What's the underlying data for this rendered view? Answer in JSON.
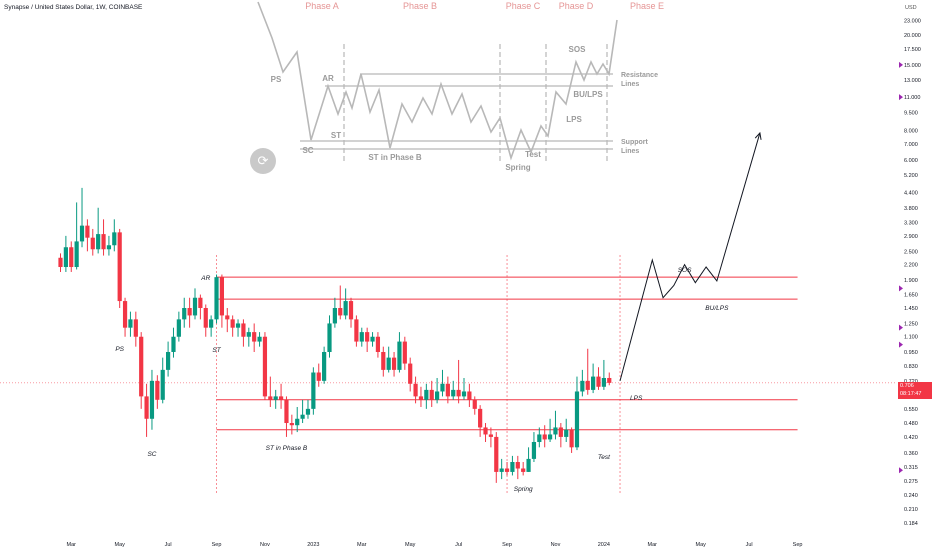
{
  "header": {
    "symbol_title": "Synapse / United States Dollar, 1W, COINBASE",
    "currency": "USD"
  },
  "icons": {
    "screen_capture": "camera-rotate-icon"
  },
  "price_label": {
    "price": "0.706",
    "countdown": "08:17:47",
    "color": "#f23645"
  },
  "chart_data": {
    "type": "candlestick",
    "scale": "log",
    "ylim": [
      0.175,
      24
    ],
    "colors": {
      "up": "#089981",
      "down": "#f23645",
      "level_lines": "#f23645"
    },
    "y_ticks": [
      23.0,
      20.0,
      17.5,
      15.0,
      13.0,
      11.0,
      9.5,
      8.0,
      7.0,
      6.0,
      5.2,
      4.4,
      3.8,
      3.3,
      2.9,
      2.5,
      2.2,
      1.9,
      1.65,
      1.45,
      1.25,
      1.1,
      0.95,
      0.83,
      0.72,
      0.63,
      0.55,
      0.48,
      0.42,
      0.36,
      0.315,
      0.275,
      0.24,
      0.21,
      0.184
    ],
    "y_tick_labels": [
      "23.000",
      "20.000",
      "17.500",
      "15.000",
      "13.000",
      "11.000",
      "9.500",
      "8.000",
      "7.000",
      "6.000",
      "5.200",
      "4.400",
      "3.800",
      "3.300",
      "2.900",
      "2.500",
      "2.200",
      "1.900",
      "1.650",
      "1.450",
      "1.250",
      "1.100",
      "0.950",
      "0.830",
      "0.720",
      "0.630",
      "0.550",
      "0.480",
      "0.420",
      "0.360",
      "0.315",
      "0.275",
      "0.240",
      "0.210",
      "0.184"
    ],
    "x_ticks": [
      "Mar",
      "May",
      "Jul",
      "Sep",
      "Nov",
      "2023",
      "Mar",
      "May",
      "Jul",
      "Sep",
      "Nov",
      "2024",
      "Mar",
      "May",
      "Jul",
      "Sep"
    ],
    "x_tick_index": [
      2,
      11,
      20,
      29,
      38,
      47,
      56,
      65,
      74,
      83,
      92,
      101,
      110,
      119,
      128,
      137
    ],
    "candles": [
      [
        2.35,
        2.15,
        2.45,
        2.05
      ],
      [
        2.15,
        2.6,
        2.9,
        2.05
      ],
      [
        2.6,
        2.15,
        2.75,
        2.05
      ],
      [
        2.15,
        2.75,
        4.0,
        2.1
      ],
      [
        2.75,
        3.2,
        4.6,
        2.6
      ],
      [
        3.2,
        2.85,
        3.4,
        2.5
      ],
      [
        2.85,
        2.55,
        3.1,
        2.4
      ],
      [
        2.55,
        2.95,
        3.8,
        2.45
      ],
      [
        2.95,
        2.55,
        3.4,
        2.4
      ],
      [
        2.55,
        2.65,
        2.9,
        2.4
      ],
      [
        2.65,
        3.0,
        3.4,
        2.5
      ],
      [
        3.0,
        1.55,
        3.1,
        1.45
      ],
      [
        1.55,
        1.2,
        1.6,
        1.1
      ],
      [
        1.2,
        1.3,
        1.4,
        1.1
      ],
      [
        1.3,
        1.1,
        1.4,
        1.0
      ],
      [
        1.1,
        0.62,
        1.15,
        0.55
      ],
      [
        0.62,
        0.5,
        0.7,
        0.42
      ],
      [
        0.5,
        0.72,
        0.8,
        0.45
      ],
      [
        0.72,
        0.6,
        0.76,
        0.55
      ],
      [
        0.6,
        0.8,
        0.9,
        0.58
      ],
      [
        0.8,
        0.95,
        1.05,
        0.75
      ],
      [
        0.95,
        1.1,
        1.2,
        0.9
      ],
      [
        1.1,
        1.3,
        1.4,
        1.05
      ],
      [
        1.3,
        1.45,
        1.6,
        1.2
      ],
      [
        1.45,
        1.35,
        1.6,
        1.2
      ],
      [
        1.35,
        1.6,
        1.75,
        1.3
      ],
      [
        1.6,
        1.45,
        1.65,
        1.3
      ],
      [
        1.45,
        1.2,
        1.5,
        1.1
      ],
      [
        1.2,
        1.3,
        1.35,
        1.1
      ],
      [
        1.3,
        1.95,
        2.0,
        1.25
      ],
      [
        1.95,
        1.35,
        2.0,
        1.2
      ],
      [
        1.35,
        1.3,
        1.45,
        1.15
      ],
      [
        1.3,
        1.2,
        1.35,
        1.1
      ],
      [
        1.2,
        1.25,
        1.3,
        1.1
      ],
      [
        1.25,
        1.1,
        1.3,
        1.0
      ],
      [
        1.1,
        1.15,
        1.2,
        1.0
      ],
      [
        1.15,
        1.05,
        1.25,
        0.95
      ],
      [
        1.05,
        1.1,
        1.15,
        1.0
      ],
      [
        1.1,
        0.62,
        1.15,
        0.6
      ],
      [
        0.62,
        0.6,
        0.75,
        0.56
      ],
      [
        0.6,
        0.62,
        0.66,
        0.55
      ],
      [
        0.62,
        0.6,
        0.7,
        0.55
      ],
      [
        0.6,
        0.48,
        0.62,
        0.42
      ],
      [
        0.48,
        0.47,
        0.52,
        0.43
      ],
      [
        0.47,
        0.5,
        0.56,
        0.44
      ],
      [
        0.5,
        0.52,
        0.6,
        0.48
      ],
      [
        0.52,
        0.55,
        0.6,
        0.5
      ],
      [
        0.55,
        0.78,
        0.82,
        0.52
      ],
      [
        0.78,
        0.72,
        0.85,
        0.68
      ],
      [
        0.72,
        0.95,
        1.0,
        0.7
      ],
      [
        0.95,
        1.25,
        1.35,
        0.9
      ],
      [
        1.25,
        1.45,
        1.6,
        1.2
      ],
      [
        1.45,
        1.35,
        1.8,
        1.3
      ],
      [
        1.35,
        1.55,
        1.75,
        1.3
      ],
      [
        1.55,
        1.3,
        1.6,
        1.2
      ],
      [
        1.3,
        1.05,
        1.35,
        1.0
      ],
      [
        1.05,
        1.15,
        1.2,
        1.0
      ],
      [
        1.15,
        1.05,
        1.2,
        0.95
      ],
      [
        1.05,
        1.1,
        1.15,
        1.0
      ],
      [
        1.1,
        0.95,
        1.15,
        0.9
      ],
      [
        0.95,
        0.8,
        1.0,
        0.75
      ],
      [
        0.8,
        0.9,
        1.0,
        0.78
      ],
      [
        0.9,
        0.8,
        0.95,
        0.75
      ],
      [
        0.8,
        1.05,
        1.15,
        0.78
      ],
      [
        1.05,
        0.85,
        1.1,
        0.8
      ],
      [
        0.85,
        0.7,
        0.9,
        0.65
      ],
      [
        0.7,
        0.62,
        0.75,
        0.58
      ],
      [
        0.62,
        0.6,
        0.68,
        0.56
      ],
      [
        0.6,
        0.66,
        0.7,
        0.55
      ],
      [
        0.66,
        0.6,
        0.72,
        0.56
      ],
      [
        0.6,
        0.65,
        0.74,
        0.58
      ],
      [
        0.65,
        0.7,
        0.8,
        0.62
      ],
      [
        0.7,
        0.62,
        0.75,
        0.58
      ],
      [
        0.62,
        0.66,
        0.72,
        0.6
      ],
      [
        0.66,
        0.62,
        0.88,
        0.58
      ],
      [
        0.62,
        0.65,
        0.74,
        0.6
      ],
      [
        0.65,
        0.6,
        0.7,
        0.56
      ],
      [
        0.6,
        0.55,
        0.62,
        0.52
      ],
      [
        0.55,
        0.46,
        0.57,
        0.42
      ],
      [
        0.46,
        0.43,
        0.48,
        0.4
      ],
      [
        0.43,
        0.42,
        0.46,
        0.38
      ],
      [
        0.42,
        0.3,
        0.44,
        0.27
      ],
      [
        0.3,
        0.31,
        0.34,
        0.28
      ],
      [
        0.31,
        0.3,
        0.33,
        0.29
      ],
      [
        0.3,
        0.33,
        0.35,
        0.29
      ],
      [
        0.33,
        0.31,
        0.35,
        0.28
      ],
      [
        0.31,
        0.3,
        0.33,
        0.29
      ],
      [
        0.3,
        0.34,
        0.38,
        0.3
      ],
      [
        0.34,
        0.4,
        0.44,
        0.33
      ],
      [
        0.4,
        0.43,
        0.46,
        0.38
      ],
      [
        0.43,
        0.41,
        0.47,
        0.38
      ],
      [
        0.41,
        0.43,
        0.5,
        0.4
      ],
      [
        0.43,
        0.46,
        0.54,
        0.41
      ],
      [
        0.46,
        0.42,
        0.48,
        0.38
      ],
      [
        0.42,
        0.45,
        0.5,
        0.4
      ],
      [
        0.45,
        0.38,
        0.46,
        0.36
      ],
      [
        0.38,
        0.65,
        0.75,
        0.37
      ],
      [
        0.65,
        0.72,
        0.8,
        0.62
      ],
      [
        0.72,
        0.66,
        0.98,
        0.63
      ],
      [
        0.66,
        0.75,
        0.85,
        0.64
      ],
      [
        0.75,
        0.68,
        0.82,
        0.66
      ],
      [
        0.68,
        0.74,
        0.88,
        0.66
      ],
      [
        0.74,
        0.706,
        0.78,
        0.69
      ]
    ],
    "levels": [
      1.95,
      1.58,
      0.6,
      0.45
    ],
    "level_span": [
      29,
      137
    ],
    "dashed_verticals": [
      29,
      83,
      104
    ],
    "projection": [
      [
        104,
        0.72
      ],
      [
        110,
        2.3
      ],
      [
        112,
        1.6
      ],
      [
        114,
        1.8
      ],
      [
        116,
        2.2
      ],
      [
        118,
        1.85
      ],
      [
        120,
        2.15
      ],
      [
        122,
        1.88
      ],
      [
        130,
        7.8
      ]
    ],
    "annotations": [
      {
        "text": "PS",
        "i": 11,
        "v": 0.96
      },
      {
        "text": "SC",
        "i": 17,
        "v": 0.35
      },
      {
        "text": "AR",
        "i": 27,
        "v": 1.9
      },
      {
        "text": "ST",
        "i": 29,
        "v": 0.95
      },
      {
        "text": "ST in Phase B",
        "i": 42,
        "v": 0.37
      },
      {
        "text": "Spring",
        "i": 86,
        "v": 0.25
      },
      {
        "text": "Test",
        "i": 101,
        "v": 0.34
      },
      {
        "text": "LPS",
        "i": 107,
        "v": 0.6
      },
      {
        "text": "SOS",
        "i": 116,
        "v": 2.05
      },
      {
        "text": "BU/LPS",
        "i": 122,
        "v": 1.42
      }
    ],
    "schematic": {
      "phases": [
        "Phase A",
        "Phase B",
        "Phase C",
        "Phase D",
        "Phase E"
      ],
      "labels": [
        "PS",
        "SC",
        "AR",
        "ST",
        "ST in Phase B",
        "Spring",
        "Test",
        "LPS",
        "BU/LPS",
        "SOS",
        "Resistance Lines",
        "Support Lines"
      ]
    }
  }
}
